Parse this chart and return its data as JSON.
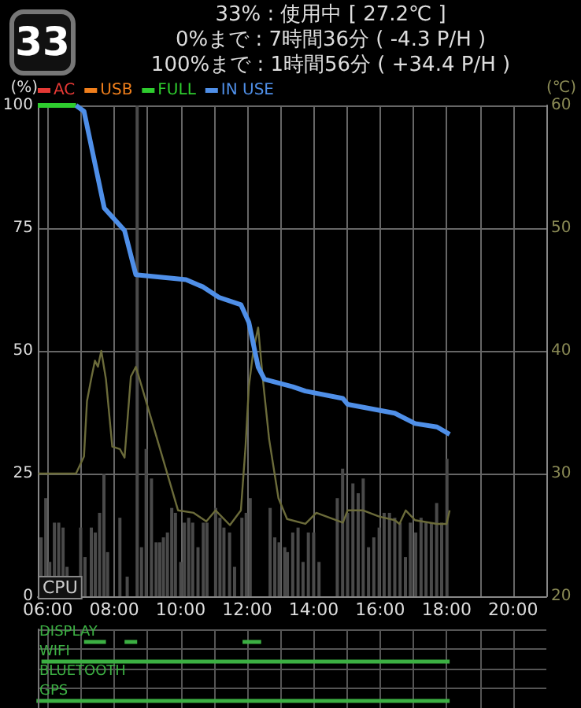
{
  "chart_data": [
    {
      "type": "line",
      "title": "33% : 使用中 [ 27.2℃ ]",
      "annotations": [
        "33",
        "0%まで : 7時間36分 ( -4.3 P/H )",
        "100%まで : 1時間56分 ( +34.4 P/H )"
      ],
      "ylabel": "(%)",
      "y2label": "(℃)",
      "xlim": [
        5.7,
        21
      ],
      "xticks": [
        {
          "value": 6,
          "label": "06:00"
        },
        {
          "value": 7,
          "label": null
        },
        {
          "value": 8,
          "label": "08:00"
        },
        {
          "value": 9,
          "label": null
        },
        {
          "value": 10,
          "label": "10:00"
        },
        {
          "value": 11,
          "label": null
        },
        {
          "value": 12,
          "label": "12:00"
        },
        {
          "value": 13,
          "label": null
        },
        {
          "value": 14,
          "label": "14:00"
        },
        {
          "value": 15,
          "label": null
        },
        {
          "value": 16,
          "label": "16:00"
        },
        {
          "value": 17,
          "label": null
        },
        {
          "value": 18,
          "label": "18:00"
        },
        {
          "value": 19,
          "label": null
        },
        {
          "value": 20,
          "label": "20:00"
        }
      ],
      "ylim": [
        0,
        100
      ],
      "yticks": [
        0,
        25,
        50,
        75,
        100
      ],
      "y2lim": [
        20,
        60
      ],
      "y2ticks": [
        20,
        30,
        40,
        50,
        60
      ],
      "grid": true,
      "legend": "top left",
      "marker": "none",
      "series": [
        {
          "name": "CPU",
          "type": "bar",
          "color": "#4a4a4a",
          "x": [
            5.8,
            5.94,
            6.06,
            6.2,
            6.33,
            6.46,
            6.58,
            6.99,
            7.12,
            7.31,
            7.43,
            7.56,
            7.69,
            7.8,
            8.17,
            8.39,
            8.69,
            8.82,
            8.96,
            9.12,
            9.26,
            9.37,
            9.48,
            9.6,
            9.73,
            9.84,
            10.0,
            10.11,
            10.24,
            10.36,
            10.52,
            10.68,
            10.79,
            11.05,
            11.18,
            11.3,
            11.47,
            11.62,
            11.84,
            11.97,
            12.09,
            12.69,
            12.83,
            12.96,
            13.13,
            13.21,
            13.37,
            13.53,
            13.68,
            13.84,
            14.0,
            14.16,
            14.71,
            14.87,
            15.02,
            15.18,
            15.34,
            15.49,
            15.65,
            15.81,
            15.97,
            16.12,
            16.28,
            16.44,
            16.6,
            16.76,
            16.91,
            17.07,
            17.23,
            17.38,
            17.54,
            17.7,
            17.85,
            18.01
          ],
          "values": [
            12,
            20,
            7,
            15,
            15,
            14,
            6,
            14,
            8,
            14,
            13,
            17,
            25,
            9,
            16,
            4,
            100,
            10,
            30,
            24,
            11,
            11,
            12,
            13,
            18,
            17,
            7,
            15,
            16,
            15,
            10,
            15,
            15,
            18,
            16,
            14,
            13,
            6,
            16,
            17,
            20,
            18,
            12,
            11,
            10,
            9,
            13,
            14,
            7,
            13,
            13,
            7,
            20,
            26,
            17,
            23,
            21,
            24,
            10,
            12,
            14,
            17,
            17,
            16,
            15,
            8,
            15,
            13,
            16,
            15,
            15,
            19,
            15,
            28
          ]
        },
        {
          "type": "line",
          "axis": "y2",
          "color": "#6b6b3a",
          "x": [
            5.72,
            6.85,
            7.09,
            7.18,
            7.32,
            7.42,
            7.51,
            7.61,
            7.75,
            7.94,
            8.17,
            8.31,
            8.5,
            8.65,
            8.74,
            9.92,
            10.39,
            10.77,
            11.05,
            11.48,
            11.81,
            11.95,
            12.05,
            12.19,
            12.33,
            12.47,
            12.66,
            12.94,
            13.2,
            13.75,
            14.08,
            14.88,
            15.02,
            15.49,
            15.97,
            16.44,
            16.58,
            16.77,
            17.05,
            17.71,
            18.0,
            18.09
          ],
          "values": [
            30,
            30,
            31.4,
            35.9,
            37.9,
            39.2,
            38.7,
            40,
            37.7,
            32.2,
            32,
            31.3,
            37.9,
            38.7,
            37.9,
            27,
            26.8,
            26.1,
            27,
            25.8,
            27,
            32.2,
            37.1,
            40.1,
            41.9,
            37.7,
            32.8,
            28,
            26.3,
            25.9,
            26.8,
            26,
            27,
            27,
            26.5,
            26.2,
            25.9,
            27,
            26.2,
            25.9,
            25.9,
            27
          ]
        },
        {
          "name": "AC",
          "color": "#e53935"
        },
        {
          "name": "USB",
          "color": "#f07f1c"
        },
        {
          "name": "FULL",
          "color": "#2ecc2e",
          "x": [
            5.7,
            6.85
          ],
          "values": [
            100,
            100
          ]
        },
        {
          "name": "IN USE",
          "color": "#4f8fe8",
          "x": [
            6.85,
            7.09,
            7.7,
            8.31,
            8.65,
            10.16,
            10.68,
            11.15,
            11.81,
            12.05,
            12.33,
            12.52,
            13.37,
            13.75,
            14.88,
            15.02,
            16.44,
            17.05,
            17.71,
            18.09
          ],
          "values": [
            100,
            98.8,
            79.1,
            74.5,
            65.5,
            64.5,
            63,
            60.9,
            59.4,
            55.8,
            46.7,
            44.2,
            42.7,
            41.8,
            40.3,
            39.1,
            37.3,
            35.2,
            34.5,
            33
          ]
        }
      ]
    },
    {
      "type": "bar",
      "orientation": "horizontal",
      "categories": [
        "DISPLAY",
        "WIFI",
        "BLUETOOTH",
        "GPS"
      ],
      "xlim": [
        5.7,
        21
      ],
      "xticks": [
        {
          "value": 6,
          "label": null
        },
        {
          "value": 7,
          "label": null
        },
        {
          "value": 8,
          "label": null
        },
        {
          "value": 9,
          "label": null
        },
        {
          "value": 10,
          "label": null
        },
        {
          "value": 11,
          "label": null
        },
        {
          "value": 12,
          "label": null
        },
        {
          "value": 13,
          "label": null
        },
        {
          "value": 14,
          "label": null
        },
        {
          "value": 15,
          "label": null
        },
        {
          "value": 16,
          "label": null
        },
        {
          "value": 17,
          "label": null
        },
        {
          "value": 18,
          "label": null
        },
        {
          "value": 19,
          "label": null
        },
        {
          "value": 20,
          "label": null
        }
      ],
      "tick_labels": "y",
      "grid": true,
      "series": [
        {
          "color": "#3cb043",
          "base": [
            7.09,
            5.81,
            null,
            5.66
          ],
          "values": [
            0.66,
            12.28,
            null,
            12.43
          ]
        },
        {
          "color": "#3cb043",
          "base": [
            8.31,
            null,
            null,
            null
          ],
          "values": [
            0.38,
            null,
            null,
            null
          ]
        },
        {
          "color": "#3cb043",
          "base": [
            11.86,
            null,
            null,
            null
          ],
          "values": [
            0.56,
            null,
            null,
            null
          ]
        }
      ]
    }
  ]
}
